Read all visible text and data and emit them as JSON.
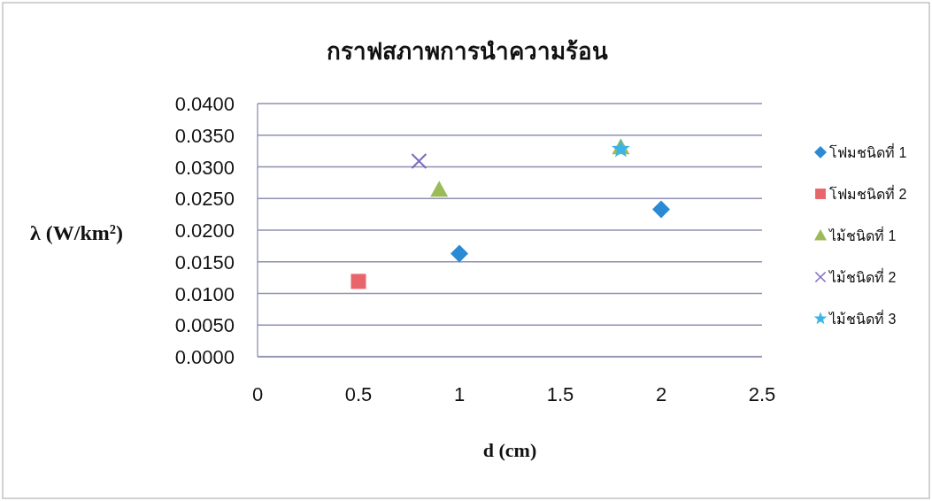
{
  "chart_data": {
    "type": "scatter",
    "title": "กราฟสภาพการนำความร้อน",
    "xlabel": "d (cm)",
    "ylabel": "λ (W/km²)",
    "xlim": [
      0,
      2.5
    ],
    "xticks": [
      0,
      0.5,
      1,
      1.5,
      2,
      2.5
    ],
    "ylim": [
      0,
      0.04
    ],
    "yticks": [
      {
        "value": 0,
        "label": "0.0000"
      },
      {
        "value": 0.005,
        "label": "0.0050"
      },
      {
        "value": 0.01,
        "label": "0.0100"
      },
      {
        "value": 0.015,
        "label": "0.0150"
      },
      {
        "value": 0.02,
        "label": "0.0200"
      },
      {
        "value": 0.025,
        "label": "0.0250"
      },
      {
        "value": 0.03,
        "label": "0.0300"
      },
      {
        "value": 0.035,
        "label": "0.0350"
      },
      {
        "value": 0.04,
        "label": "0.0400"
      }
    ],
    "grid": "y",
    "legend": "right",
    "series": [
      {
        "name": "โฟมชนิดที่ 1",
        "color": "#2a8ad4",
        "marker": "diamond",
        "x": [
          1,
          2
        ],
        "values": [
          0.0163,
          0.0233
        ]
      },
      {
        "name": "โฟมชนิดที่ 2",
        "color": "#e8666b",
        "marker": "square",
        "x": [
          0.5
        ],
        "values": [
          0.0119
        ]
      },
      {
        "name": "ไม้ชนิดที่ 1",
        "color": "#9bbb59",
        "marker": "triangle",
        "x": [
          0.9,
          1.8
        ],
        "values": [
          0.0264,
          0.0331
        ]
      },
      {
        "name": "ไม้ชนิดที่ 2",
        "color": "#7b68c0",
        "marker": "cross",
        "x": [
          0.8
        ],
        "values": [
          0.0309
        ]
      },
      {
        "name": "ไม้ชนิดที่ 3",
        "color": "#3cb4e6",
        "marker": "star",
        "x": [
          1.8
        ],
        "values": [
          0.0328
        ]
      }
    ]
  }
}
